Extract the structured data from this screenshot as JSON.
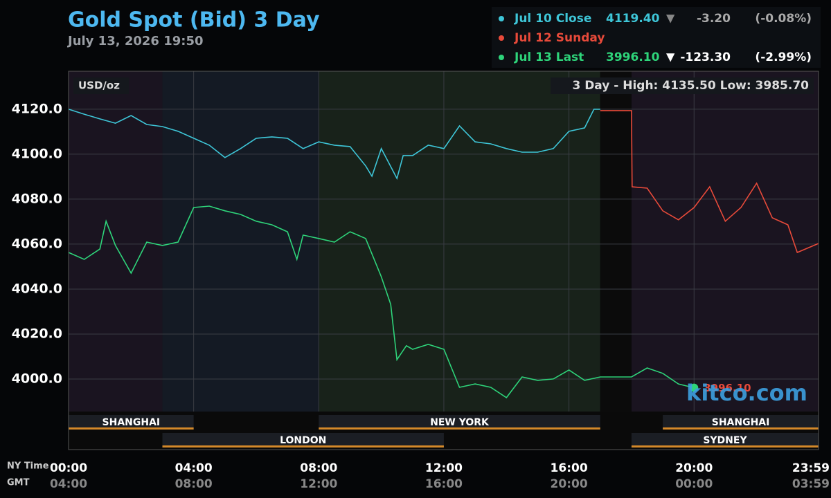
{
  "chart_data": {
    "type": "line",
    "title": "Gold Spot (Bid) 3 Day",
    "subtitle": "July 13, 2026 19:50",
    "unit_label": "USD/oz",
    "range_label": "3 Day - High: 4135.50  Low: 3985.70",
    "watermark": "kitco.com",
    "x_row_labels": [
      "NY Time",
      "GMT"
    ],
    "xlim": [
      0,
      23.98
    ],
    "ylim": [
      3968.6,
      4136.9
    ],
    "xticks": [
      {
        "value": 0,
        "label": "00:00"
      },
      {
        "value": 4,
        "label": "04:00"
      },
      {
        "value": 8,
        "label": "08:00"
      },
      {
        "value": 12,
        "label": "12:00"
      },
      {
        "value": 16,
        "label": "16:00"
      },
      {
        "value": 20,
        "label": "20:00"
      },
      {
        "value": 23.98,
        "label": "23:59"
      }
    ],
    "gmt_labels": [
      "04:00",
      "08:00",
      "12:00",
      "16:00",
      "20:00",
      "00:00",
      "03:59"
    ],
    "yticks": [
      {
        "value": 4000,
        "label": "4000.0"
      },
      {
        "value": 4020,
        "label": "4020.0"
      },
      {
        "value": 4040,
        "label": "4040.0"
      },
      {
        "value": 4060,
        "label": "4060.0"
      },
      {
        "value": 4080,
        "label": "4080.0"
      },
      {
        "value": 4100,
        "label": "4100.0"
      },
      {
        "value": 4120,
        "label": "4120.0"
      }
    ],
    "grid": true,
    "shading": [
      {
        "start": 0,
        "end": 3,
        "color": "#1a1420"
      },
      {
        "start": 3,
        "end": 8,
        "color": "#141a24"
      },
      {
        "start": 8,
        "end": 17,
        "color": "#18221a"
      },
      {
        "start": 17,
        "end": 18,
        "color": "#0b0b0b"
      },
      {
        "start": 18,
        "end": 23.98,
        "color": "#1a1420"
      }
    ],
    "sessions": [
      {
        "name": "SHANGHAI",
        "row": 0,
        "start": 0,
        "end": 4
      },
      {
        "name": "NEW YORK",
        "row": 0,
        "start": 8,
        "end": 17
      },
      {
        "name": "SHANGHAI",
        "row": 0,
        "start": 19,
        "end": 23.98
      },
      {
        "name": "LONDON",
        "row": 1,
        "start": 3,
        "end": 12
      },
      {
        "name": "SYDNEY",
        "row": 1,
        "start": 18,
        "end": 23.98
      }
    ],
    "series": [
      {
        "name": "Jul 10 Close",
        "color": "#3ec6d8",
        "summary": {
          "last": "4119.40",
          "arrow": "▼",
          "change": "-3.20",
          "percent": "(-0.08%)"
        },
        "x": [
          0,
          0.5,
          1,
          1.5,
          2,
          2.5,
          3,
          3.5,
          4,
          4.5,
          5,
          5.5,
          6,
          6.5,
          7,
          7.5,
          8,
          8.5,
          9,
          9.5,
          9.7,
          10,
          10.5,
          10.7,
          11,
          11.5,
          12,
          12.5,
          13,
          13.5,
          14,
          14.5,
          15,
          15.5,
          16,
          16.5,
          16.8,
          17
        ],
        "values": [
          4120,
          4117.8,
          4115.7,
          4113.8,
          4117.2,
          4113.2,
          4112.3,
          4110.2,
          4107.1,
          4104,
          4098.5,
          4102.5,
          4107.1,
          4107.7,
          4107.1,
          4102.5,
          4105.5,
          4104,
          4103.4,
          4094.8,
          4090.2,
          4102.5,
          4089.2,
          4099.4,
          4099.4,
          4104,
          4102.5,
          4112.6,
          4105.5,
          4104.6,
          4102.5,
          4100.9,
          4100.9,
          4102.5,
          4110.2,
          4111.7,
          4120,
          4120
        ]
      },
      {
        "name": "Jul 12 Sunday",
        "color": "#e84a3a",
        "x": [
          17,
          18,
          18.02,
          18.5,
          19,
          19.5,
          20,
          20.5,
          21,
          21.5,
          22,
          22.5,
          23,
          23.3,
          23.98
        ],
        "values": [
          4119.4,
          4119.4,
          4085.5,
          4084.9,
          4074.8,
          4070.8,
          4076.3,
          4085.5,
          4070.2,
          4076.3,
          4087.1,
          4071.7,
          4068.6,
          4056.3,
          4060.3
        ]
      },
      {
        "name": "Jul 13 Last",
        "color": "#2ed47a",
        "summary": {
          "last": "3996.10",
          "arrow": "▼",
          "change": "-123.30",
          "percent": "(-2.99%)"
        },
        "last_label": "3996.10",
        "x": [
          0,
          0.5,
          1,
          1.2,
          1.5,
          2,
          2.5,
          3,
          3.5,
          4,
          4.5,
          5,
          5.5,
          6,
          6.5,
          7,
          7.3,
          7.5,
          8,
          8.5,
          9,
          9.5,
          10,
          10.3,
          10.5,
          10.8,
          11,
          11.5,
          12,
          12.5,
          13,
          13.5,
          14,
          14.5,
          15,
          15.5,
          16,
          16.5,
          17,
          18,
          18.5,
          19,
          19.5,
          20
        ],
        "values": [
          4056.3,
          4053.2,
          4057.8,
          4070.2,
          4059.4,
          4047.1,
          4060.9,
          4059.4,
          4060.9,
          4076.3,
          4076.9,
          4074.8,
          4073.2,
          4070.2,
          4068.6,
          4065.5,
          4053.2,
          4064,
          4062.5,
          4060.9,
          4065.5,
          4062.5,
          4045.5,
          4033.2,
          4008.6,
          4014.8,
          4013.2,
          4015.4,
          4013.2,
          3996.3,
          3997.8,
          3996.3,
          3991.7,
          4000.9,
          3999.4,
          4000,
          4004,
          3999.4,
          4000.9,
          4000.9,
          4004.9,
          4002.5,
          3997.8,
          3996.1
        ]
      }
    ]
  }
}
